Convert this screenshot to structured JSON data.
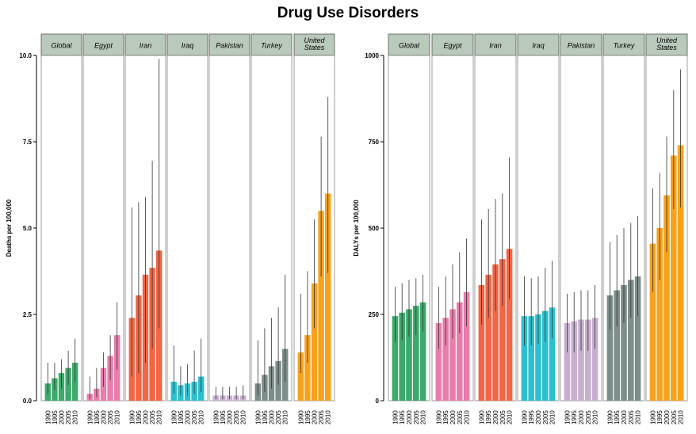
{
  "title": "Drug Use Disorders",
  "years": [
    "1990",
    "1995",
    "2000",
    "2005",
    "2010"
  ],
  "colors": {
    "Global": "#3daa6c",
    "Egypt": "#e87dac",
    "Iran": "#f26545",
    "Iraq": "#2cc0cf",
    "Pakistan": "#c7afd0",
    "Turkey": "#7d8d8a",
    "United States": "#f7a21c",
    "strip_fill": "#b9c9bb",
    "error_bar": "#333333"
  },
  "chart_data": [
    {
      "type": "bar",
      "name": "deaths",
      "ylabel": "Deaths per 100,000",
      "ylim": [
        0,
        10
      ],
      "yticks": [
        "0.0",
        "2.5",
        "5.0",
        "7.5",
        "10.0"
      ],
      "ytick_values": [
        0,
        2.5,
        5,
        7.5,
        10
      ],
      "panels": [
        {
          "label": "Global",
          "values": [
            0.5,
            0.65,
            0.8,
            0.95,
            1.1
          ],
          "lower": [
            0.2,
            0.3,
            0.35,
            0.45,
            0.55
          ],
          "upper": [
            1.1,
            1.1,
            1.2,
            1.45,
            1.8
          ]
        },
        {
          "label": "Egypt",
          "values": [
            0.2,
            0.35,
            0.95,
            1.3,
            1.9
          ],
          "lower": [
            0.05,
            0.1,
            0.4,
            0.6,
            0.9
          ],
          "upper": [
            0.7,
            0.95,
            1.4,
            1.9,
            2.85
          ]
        },
        {
          "label": "Iran",
          "values": [
            2.4,
            3.05,
            3.65,
            3.85,
            4.35
          ],
          "lower": [
            0.7,
            0.8,
            1.1,
            1.5,
            2.1
          ],
          "upper": [
            5.6,
            5.75,
            5.9,
            6.95,
            9.9
          ]
        },
        {
          "label": "Iraq",
          "values": [
            0.55,
            0.45,
            0.5,
            0.55,
            0.7
          ],
          "lower": [
            0.2,
            0.15,
            0.15,
            0.2,
            0.25
          ],
          "upper": [
            1.6,
            1.0,
            1.05,
            1.45,
            1.8
          ]
        },
        {
          "label": "Pakistan",
          "values": [
            0.15,
            0.15,
            0.15,
            0.15,
            0.15
          ],
          "lower": [
            0.05,
            0.05,
            0.05,
            0.05,
            0.05
          ],
          "upper": [
            0.4,
            0.4,
            0.4,
            0.4,
            0.45
          ]
        },
        {
          "label": "Turkey",
          "values": [
            0.5,
            0.75,
            1.0,
            1.15,
            1.5
          ],
          "lower": [
            0.15,
            0.25,
            0.35,
            0.45,
            0.55
          ],
          "upper": [
            1.75,
            2.1,
            2.4,
            2.7,
            3.65
          ]
        },
        {
          "label": "United States",
          "label_lines": [
            "United",
            "States"
          ],
          "values": [
            1.4,
            1.9,
            3.4,
            5.5,
            6.0
          ],
          "lower": [
            0.8,
            1.1,
            2.1,
            3.6,
            3.7
          ],
          "upper": [
            3.1,
            3.75,
            5.25,
            7.65,
            8.8
          ]
        }
      ]
    },
    {
      "type": "bar",
      "name": "dalys",
      "ylabel": "DALYs per 100,000",
      "ylim": [
        0,
        1000
      ],
      "yticks": [
        "0",
        "250",
        "500",
        "750",
        "1000"
      ],
      "ytick_values": [
        0,
        250,
        500,
        750,
        1000
      ],
      "panels": [
        {
          "label": "Global",
          "values": [
            245,
            255,
            265,
            275,
            285
          ],
          "lower": [
            170,
            175,
            185,
            190,
            200
          ],
          "upper": [
            330,
            340,
            350,
            355,
            365
          ]
        },
        {
          "label": "Egypt",
          "values": [
            225,
            240,
            265,
            285,
            315
          ],
          "lower": [
            150,
            160,
            180,
            195,
            215
          ],
          "upper": [
            330,
            360,
            395,
            430,
            470
          ]
        },
        {
          "label": "Iran",
          "values": [
            335,
            365,
            395,
            410,
            440
          ],
          "lower": [
            220,
            240,
            260,
            275,
            295
          ],
          "upper": [
            525,
            555,
            585,
            600,
            705
          ]
        },
        {
          "label": "Iraq",
          "values": [
            245,
            245,
            250,
            260,
            270
          ],
          "lower": [
            160,
            160,
            165,
            170,
            180
          ],
          "upper": [
            360,
            355,
            360,
            385,
            405
          ]
        },
        {
          "label": "Pakistan",
          "values": [
            225,
            230,
            235,
            235,
            240
          ],
          "lower": [
            140,
            140,
            145,
            145,
            150
          ],
          "upper": [
            310,
            315,
            320,
            320,
            335
          ]
        },
        {
          "label": "Turkey",
          "values": [
            305,
            320,
            335,
            350,
            360
          ],
          "lower": [
            205,
            215,
            225,
            240,
            245
          ],
          "upper": [
            460,
            480,
            500,
            515,
            535
          ]
        },
        {
          "label": "United States",
          "label_lines": [
            "United",
            "States"
          ],
          "values": [
            455,
            500,
            595,
            710,
            740
          ],
          "lower": [
            315,
            350,
            430,
            555,
            560
          ],
          "upper": [
            615,
            660,
            765,
            900,
            960
          ]
        }
      ]
    }
  ]
}
